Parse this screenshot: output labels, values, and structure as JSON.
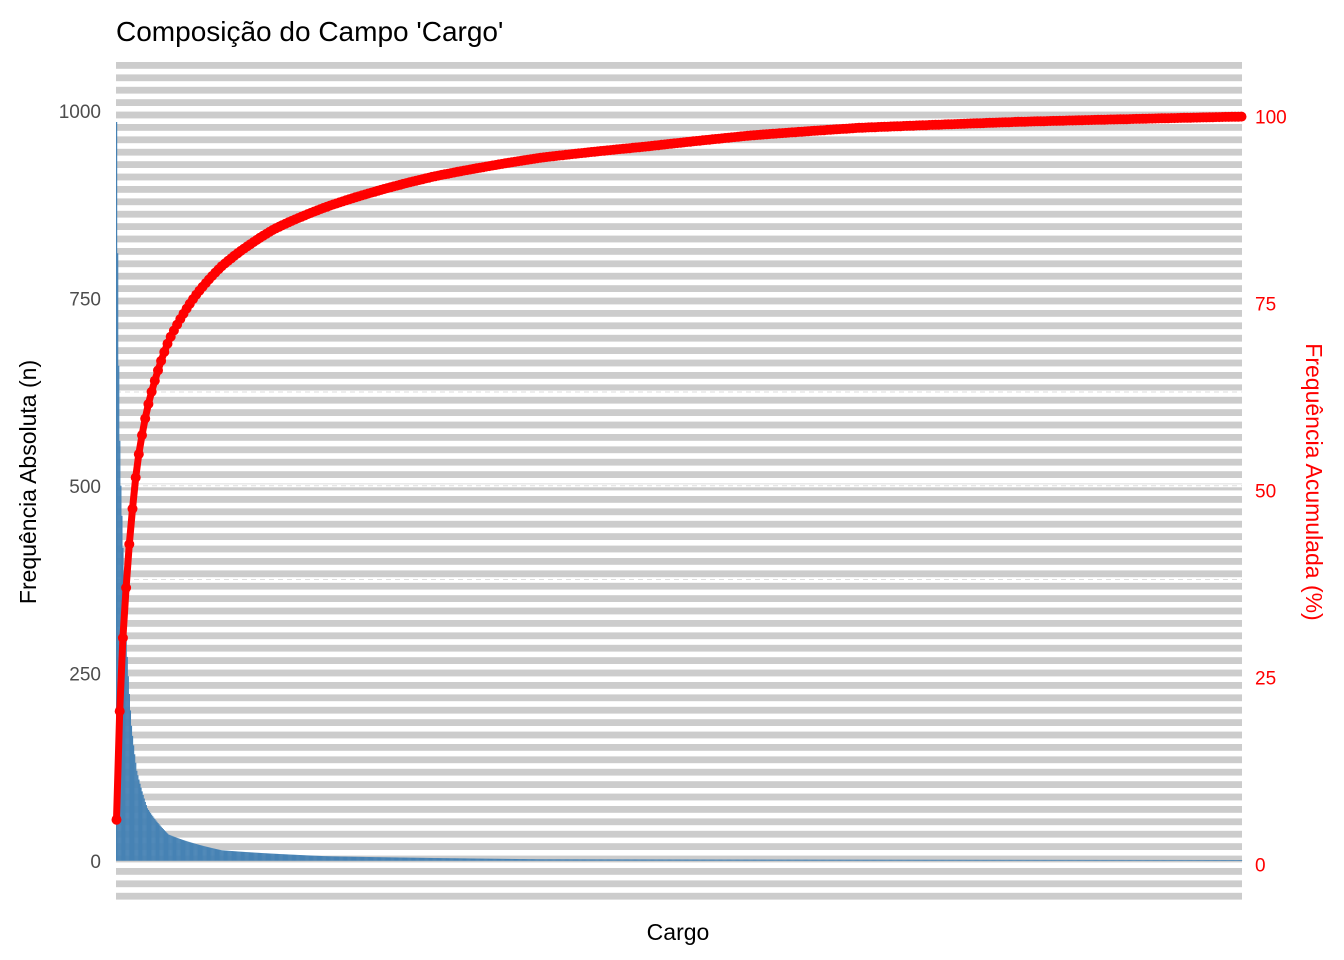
{
  "chart_data": {
    "type": "bar",
    "title": "Composição do Campo 'Cargo'",
    "xlabel": "Cargo",
    "ylabel": "Frequência Absoluta (n)",
    "ylabel_right": "Frequência Acumulada (%)",
    "ylim": [
      -55,
      1065
    ],
    "ylim_right": [
      -5,
      107.3
    ],
    "yticks": [
      0,
      250,
      500,
      750,
      1000
    ],
    "yticks_right": [
      0,
      25,
      50,
      75,
      100
    ],
    "x_tick_labels": "none",
    "grid": "horizontal striped rows",
    "legend": "none",
    "colors": {
      "bars": "#4682b4",
      "cumulative": "#ff0000",
      "stripe": "#cccccc",
      "background": "#ffffff"
    },
    "category_count": 1060,
    "series": [
      {
        "kind": "bar",
        "axis": "left",
        "description_points": [
          {
            "rank": 1,
            "value": 985
          },
          {
            "rank": 2,
            "value": 810
          },
          {
            "rank": 3,
            "value": 660
          },
          {
            "rank": 4,
            "value": 560
          },
          {
            "rank": 5,
            "value": 500
          },
          {
            "rank": 6,
            "value": 460
          },
          {
            "rank": 8,
            "value": 380
          },
          {
            "rank": 10,
            "value": 300
          },
          {
            "rank": 15,
            "value": 180
          },
          {
            "rank": 20,
            "value": 120
          },
          {
            "rank": 30,
            "value": 70
          },
          {
            "rank": 50,
            "value": 35
          },
          {
            "rank": 100,
            "value": 14
          },
          {
            "rank": 200,
            "value": 6
          },
          {
            "rank": 400,
            "value": 2
          },
          {
            "rank": 1060,
            "value": 1
          }
        ]
      },
      {
        "kind": "line-points",
        "axis": "right",
        "description_points": [
          {
            "rank": 1,
            "value": 6
          },
          {
            "rank": 3,
            "value": 16
          },
          {
            "rank": 5,
            "value": 24
          },
          {
            "rank": 10,
            "value": 37
          },
          {
            "rank": 15,
            "value": 46
          },
          {
            "rank": 20,
            "value": 53
          },
          {
            "rank": 30,
            "value": 61
          },
          {
            "rank": 50,
            "value": 70
          },
          {
            "rank": 75,
            "value": 76
          },
          {
            "rank": 100,
            "value": 80
          },
          {
            "rank": 150,
            "value": 85
          },
          {
            "rank": 200,
            "value": 88
          },
          {
            "rank": 300,
            "value": 92
          },
          {
            "rank": 400,
            "value": 94.5
          },
          {
            "rank": 500,
            "value": 96
          },
          {
            "rank": 600,
            "value": 97.5
          },
          {
            "rank": 700,
            "value": 98.5
          },
          {
            "rank": 850,
            "value": 99.3
          },
          {
            "rank": 1060,
            "value": 100
          }
        ]
      }
    ]
  }
}
